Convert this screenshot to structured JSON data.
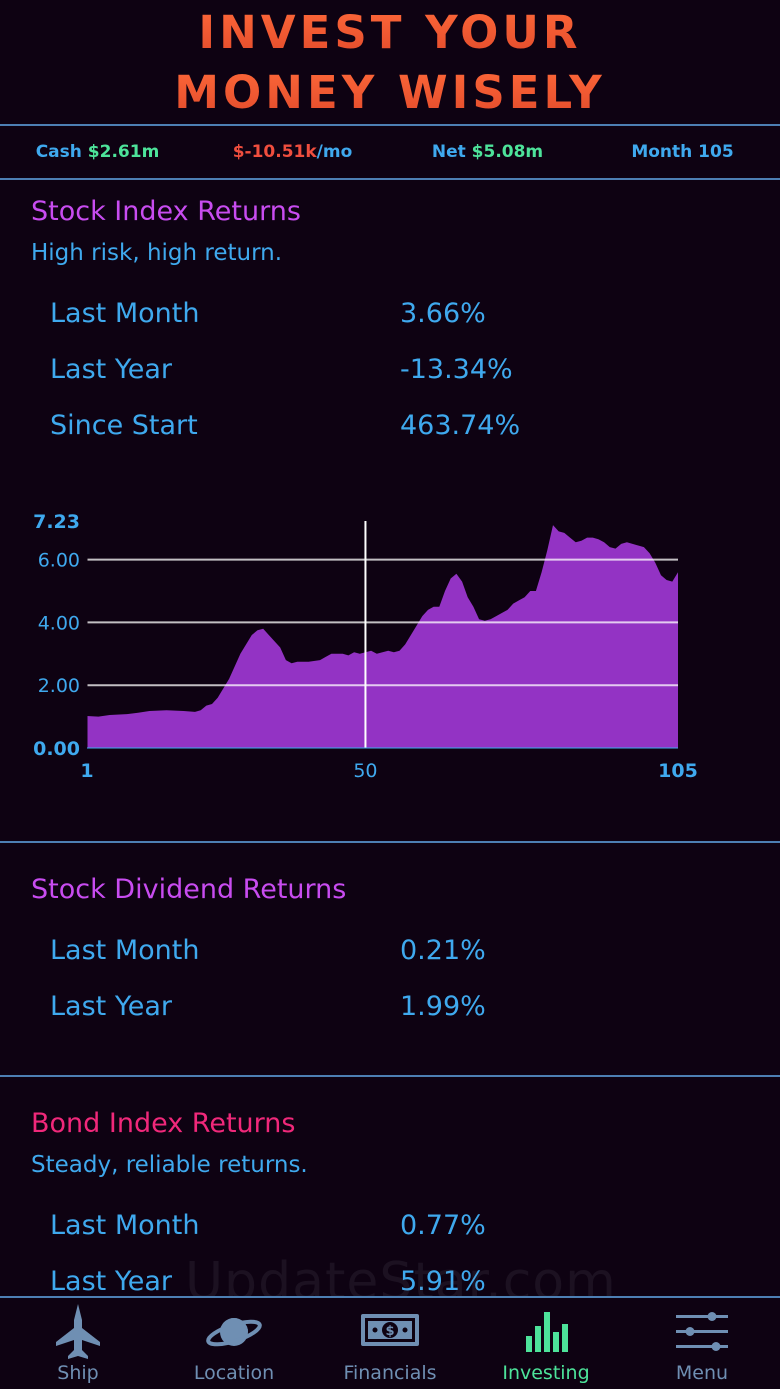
{
  "header": {
    "line1": "INVEST YOUR",
    "line2": "MONEY WISELY"
  },
  "stats": {
    "cash_label": "Cash ",
    "cash_value": "$2.61m",
    "flow_value": "$-10.51k",
    "flow_unit": "/mo",
    "net_label": "Net ",
    "net_value": "$5.08m",
    "month_label": "Month 105"
  },
  "stock_index": {
    "title": "Stock Index Returns",
    "subtitle": "High risk, high return.",
    "rows": [
      {
        "label": "Last Month",
        "value": "3.66%"
      },
      {
        "label": "Last Year",
        "value": "-13.34%"
      },
      {
        "label": "Since Start",
        "value": "463.74%"
      }
    ]
  },
  "stock_dividend": {
    "title": "Stock Dividend Returns",
    "rows": [
      {
        "label": "Last Month",
        "value": "0.21%"
      },
      {
        "label": "Last Year",
        "value": "1.99%"
      }
    ]
  },
  "bond_index": {
    "title": "Bond Index Returns",
    "subtitle": "Steady, reliable returns.",
    "rows": [
      {
        "label": "Last Month",
        "value": "0.77%"
      },
      {
        "label": "Last Year",
        "value": "5.91%"
      }
    ]
  },
  "watermark": "UpdateStar.com",
  "tabs": [
    {
      "label": "Ship",
      "icon": "jet-icon"
    },
    {
      "label": "Location",
      "icon": "planet-icon"
    },
    {
      "label": "Financials",
      "icon": "money-icon"
    },
    {
      "label": "Investing",
      "icon": "bar-chart-icon",
      "active": true
    },
    {
      "label": "Menu",
      "icon": "sliders-icon"
    }
  ],
  "colors": {
    "accent_blue": "#3fa9ee",
    "purple": "#c84cf0",
    "pink": "#f0287a",
    "green": "#4de39a",
    "red": "#f04e3e",
    "area_fill": "#9333c4"
  },
  "chart_data": {
    "type": "area",
    "x_ticks": [
      "1",
      "50",
      "105"
    ],
    "y_ticks": [
      "0.00",
      "2.00",
      "4.00",
      "6.00",
      "7.23"
    ],
    "ylim": [
      0,
      7.23
    ],
    "xlim": [
      1,
      105
    ],
    "marker_x": 50,
    "grid": true,
    "series": [
      {
        "points": [
          [
            1,
            1.02
          ],
          [
            3,
            1.0
          ],
          [
            5,
            1.05
          ],
          [
            8,
            1.08
          ],
          [
            10,
            1.12
          ],
          [
            12,
            1.18
          ],
          [
            15,
            1.2
          ],
          [
            18,
            1.18
          ],
          [
            20,
            1.15
          ],
          [
            21,
            1.2
          ],
          [
            22,
            1.35
          ],
          [
            23,
            1.4
          ],
          [
            24,
            1.6
          ],
          [
            26,
            2.2
          ],
          [
            28,
            3.0
          ],
          [
            30,
            3.6
          ],
          [
            31,
            3.75
          ],
          [
            32,
            3.8
          ],
          [
            33,
            3.6
          ],
          [
            35,
            3.2
          ],
          [
            36,
            2.8
          ],
          [
            37,
            2.7
          ],
          [
            38,
            2.75
          ],
          [
            40,
            2.75
          ],
          [
            42,
            2.8
          ],
          [
            43,
            2.9
          ],
          [
            44,
            3.0
          ],
          [
            46,
            3.0
          ],
          [
            47,
            2.95
          ],
          [
            48,
            3.05
          ],
          [
            49,
            3.0
          ],
          [
            50,
            3.05
          ],
          [
            51,
            3.1
          ],
          [
            52,
            3.0
          ],
          [
            53,
            3.05
          ],
          [
            54,
            3.1
          ],
          [
            55,
            3.05
          ],
          [
            56,
            3.1
          ],
          [
            57,
            3.3
          ],
          [
            58,
            3.6
          ],
          [
            59,
            3.9
          ],
          [
            60,
            4.2
          ],
          [
            61,
            4.4
          ],
          [
            62,
            4.5
          ],
          [
            63,
            4.5
          ],
          [
            64,
            5.0
          ],
          [
            65,
            5.4
          ],
          [
            66,
            5.55
          ],
          [
            67,
            5.3
          ],
          [
            68,
            4.8
          ],
          [
            69,
            4.5
          ],
          [
            70,
            4.1
          ],
          [
            71,
            4.05
          ],
          [
            72,
            4.1
          ],
          [
            73,
            4.2
          ],
          [
            74,
            4.3
          ],
          [
            75,
            4.4
          ],
          [
            76,
            4.6
          ],
          [
            77,
            4.7
          ],
          [
            78,
            4.8
          ],
          [
            79,
            5.0
          ],
          [
            80,
            5.0
          ],
          [
            81,
            5.6
          ],
          [
            82,
            6.3
          ],
          [
            83,
            7.1
          ],
          [
            84,
            6.9
          ],
          [
            85,
            6.85
          ],
          [
            86,
            6.7
          ],
          [
            87,
            6.55
          ],
          [
            88,
            6.6
          ],
          [
            89,
            6.7
          ],
          [
            90,
            6.7
          ],
          [
            91,
            6.65
          ],
          [
            92,
            6.55
          ],
          [
            93,
            6.4
          ],
          [
            94,
            6.35
          ],
          [
            95,
            6.5
          ],
          [
            96,
            6.55
          ],
          [
            97,
            6.5
          ],
          [
            98,
            6.45
          ],
          [
            99,
            6.4
          ],
          [
            100,
            6.2
          ],
          [
            101,
            5.9
          ],
          [
            102,
            5.5
          ],
          [
            103,
            5.35
          ],
          [
            104,
            5.3
          ],
          [
            105,
            5.6
          ]
        ]
      }
    ]
  }
}
